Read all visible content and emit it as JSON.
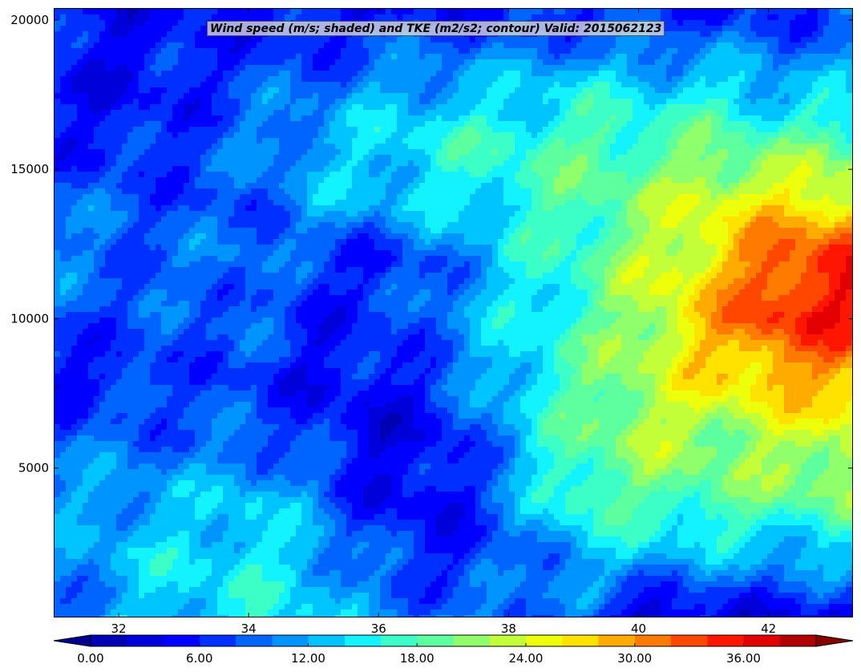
{
  "chart_data": {
    "type": "heatmap",
    "title": "Wind speed (m/s; shaded) and TKE (m2/s2; contour) Valid: 2015062123",
    "xlabel": "",
    "ylabel": "",
    "xlim": [
      31.0,
      43.3
    ],
    "ylim": [
      0,
      20400
    ],
    "x_ticks": [
      32,
      34,
      36,
      38,
      40,
      42
    ],
    "x_tick_labels": [
      "32",
      "34",
      "36",
      "38",
      "40",
      "42"
    ],
    "y_ticks": [
      5000,
      10000,
      15000,
      20000
    ],
    "y_tick_labels": [
      "5000",
      "10000",
      "15000",
      "20000"
    ],
    "colorbar": {
      "orientation": "horizontal",
      "extend": "both",
      "levels": [
        0,
        2,
        4,
        6,
        8,
        10,
        12,
        14,
        16,
        18,
        20,
        22,
        24,
        26,
        28,
        30,
        32,
        34,
        36,
        38,
        40
      ],
      "tick_values": [
        0,
        6,
        12,
        18,
        24,
        30,
        36
      ],
      "tick_labels": [
        "0.00",
        "6.00",
        "12.00",
        "18.00",
        "24.00",
        "30.00",
        "36.00"
      ],
      "colors": [
        "#00008f",
        "#0000b5",
        "#0000db",
        "#0000ff",
        "#0030ff",
        "#0064ff",
        "#0094ff",
        "#00c4ff",
        "#12f3ff",
        "#3cffc8",
        "#5eff9e",
        "#90ff6c",
        "#c2ff38",
        "#eeff0c",
        "#ffe200",
        "#ffab00",
        "#ff7a00",
        "#ff4700",
        "#ff1600",
        "#e20000",
        "#b00000",
        "#870000"
      ]
    },
    "wind_speed_grid": {
      "units": "m/s",
      "x": [
        31.0,
        32.0,
        33.0,
        34.0,
        35.0,
        36.0,
        37.0,
        38.0,
        39.0,
        40.0,
        41.0,
        42.0,
        43.0
      ],
      "y": [
        0,
        2000,
        4000,
        6000,
        8000,
        10000,
        12000,
        14000,
        16000,
        18000,
        20000
      ],
      "values": [
        [
          8,
          12,
          14,
          15,
          14,
          10,
          10,
          10,
          9,
          2,
          4,
          4,
          4
        ],
        [
          10,
          13,
          14,
          15,
          13,
          8,
          6,
          8,
          12,
          13,
          12,
          12,
          12
        ],
        [
          11,
          12,
          12,
          14,
          10,
          5,
          5,
          10,
          18,
          18,
          19,
          19,
          20
        ],
        [
          9,
          9,
          9,
          9,
          7,
          4,
          5,
          12,
          18,
          22,
          21,
          22,
          24
        ],
        [
          5,
          6,
          8,
          7,
          5,
          5,
          8,
          14,
          18,
          22,
          26,
          28,
          29
        ],
        [
          8,
          8,
          8,
          9,
          6,
          7,
          10,
          14,
          17,
          22,
          28,
          34,
          35
        ],
        [
          10,
          9,
          9,
          10,
          7,
          6,
          9,
          14,
          17,
          22,
          26,
          32,
          35
        ],
        [
          10,
          8,
          8,
          8,
          12,
          13,
          14,
          16,
          18,
          20,
          24,
          26,
          26
        ],
        [
          6,
          6,
          7,
          10,
          12,
          14,
          16,
          17,
          18,
          18,
          19,
          18,
          18
        ],
        [
          5,
          5,
          6,
          8,
          9,
          11,
          12,
          12,
          14,
          13,
          14,
          12,
          12
        ],
        [
          6,
          5,
          6,
          6,
          5,
          6,
          6,
          7,
          7,
          7,
          7,
          7,
          8
        ]
      ]
    }
  }
}
